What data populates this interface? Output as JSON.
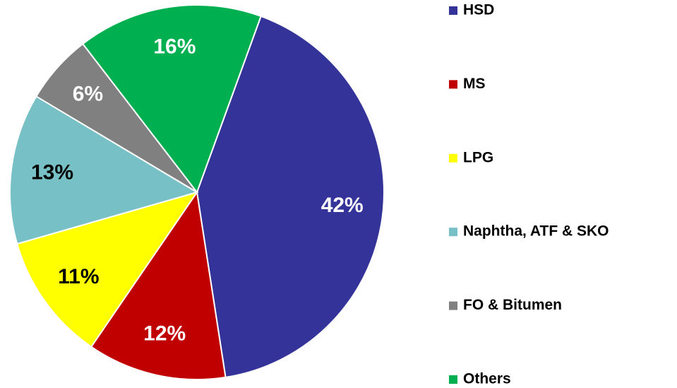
{
  "chart_data": {
    "type": "pie",
    "categories": [
      "HSD",
      "MS",
      "LPG",
      "Naphtha, ATF & SKO",
      "FO & Bitumen",
      "Others"
    ],
    "values": [
      42,
      12,
      11,
      13,
      6,
      16
    ],
    "value_labels": [
      "42%",
      "12%",
      "11%",
      "13%",
      "6%",
      "16%"
    ],
    "colors": [
      "#333399",
      "#c00000",
      "#ffff00",
      "#76c0c6",
      "#808080",
      "#00b050"
    ],
    "legend": "right"
  }
}
